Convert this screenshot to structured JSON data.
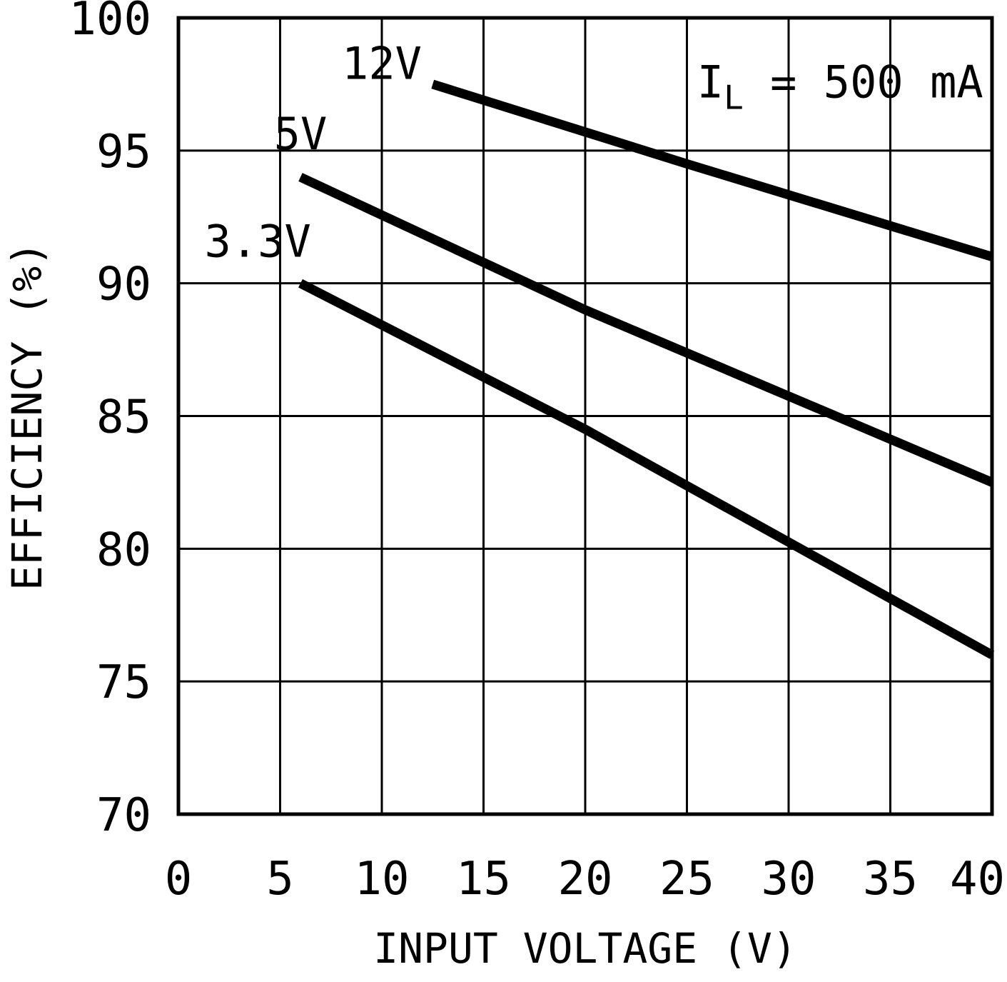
{
  "chart_data": {
    "type": "line",
    "title": "",
    "xlabel": "INPUT VOLTAGE (V)",
    "ylabel": "EFFICIENCY (%)",
    "xlim": [
      0,
      40
    ],
    "ylim": [
      70,
      100
    ],
    "xticks": [
      0,
      5,
      10,
      15,
      20,
      25,
      30,
      35,
      40
    ],
    "yticks": [
      70,
      75,
      80,
      85,
      90,
      95,
      100
    ],
    "grid": true,
    "legend_position": "inline-labels",
    "line_color": "#000000",
    "grid_color": "#000000",
    "background": "#ffffff",
    "annotation": {
      "prefix": "I",
      "subscript": "L",
      "rest": " = 500 mA",
      "x": 25.5,
      "y": 97.0
    },
    "series": [
      {
        "name": "12V",
        "x": [
          12.5,
          25,
          40
        ],
        "y": [
          97.5,
          94.5,
          91.0
        ],
        "label_x": 10.0,
        "label_y": 97.7
      },
      {
        "name": "5V",
        "x": [
          6,
          20,
          40
        ],
        "y": [
          94.0,
          89.0,
          82.5
        ],
        "label_x": 6.0,
        "label_y": 95.05
      },
      {
        "name": "3.3V",
        "x": [
          6,
          20,
          40
        ],
        "y": [
          90.0,
          84.5,
          76.0
        ],
        "label_x": 3.9,
        "label_y": 91.0
      }
    ]
  }
}
